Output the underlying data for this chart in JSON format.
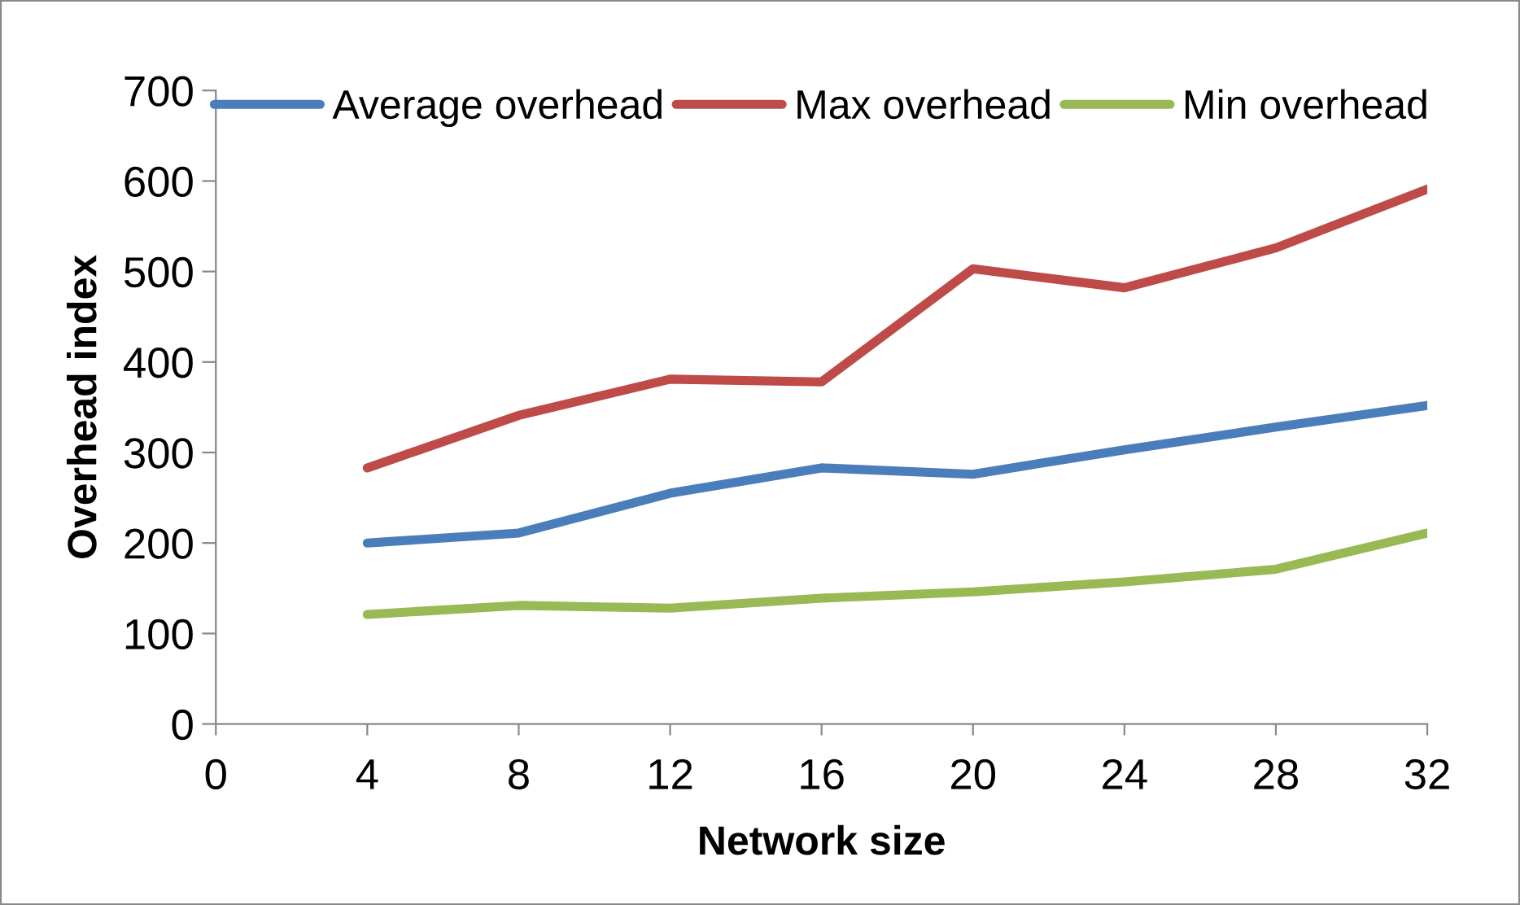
{
  "chart_data": {
    "type": "line",
    "xlabel": "Network size",
    "ylabel": "Overhead index",
    "x": [
      4,
      8,
      12,
      16,
      20,
      24,
      28,
      32
    ],
    "series": [
      {
        "name": "Average overhead",
        "color": "#4a7ebb",
        "values": [
          200,
          211,
          255,
          283,
          276,
          303,
          328,
          352
        ]
      },
      {
        "name": "Max overhead",
        "color": "#be4b48",
        "values": [
          283,
          341,
          381,
          378,
          503,
          482,
          526,
          591
        ]
      },
      {
        "name": "Min overhead",
        "color": "#98b954",
        "values": [
          121,
          131,
          128,
          139,
          146,
          157,
          171,
          211
        ]
      }
    ],
    "xlim": [
      0,
      32
    ],
    "xticks": [
      0,
      4,
      8,
      12,
      16,
      20,
      24,
      28,
      32
    ],
    "ylim": [
      0,
      700
    ],
    "yticks": [
      0,
      100,
      200,
      300,
      400,
      500,
      600,
      700
    ],
    "grid": false,
    "legend": "top",
    "marker": "none",
    "line_style": "solid"
  }
}
